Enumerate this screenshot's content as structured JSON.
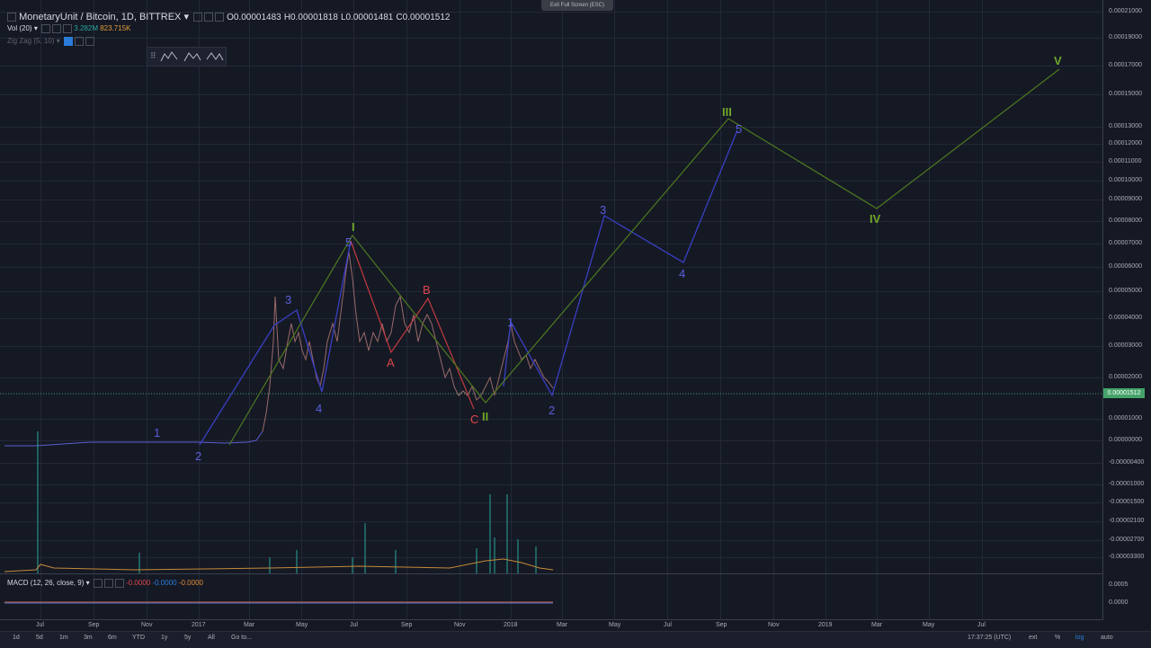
{
  "exit_fullscreen": "Exit Full Screen (ESC)",
  "symbol": {
    "name": "MonetaryUnit / Bitcoin, 1D, BITTREX",
    "open_label": "O",
    "open": "0.00001483",
    "high_label": "H",
    "high": "0.00001818",
    "low_label": "L",
    "low": "0.00001481",
    "close_label": "C",
    "close": "0.00001512"
  },
  "volume": {
    "label": "Vol (20)",
    "value1": "3.282M",
    "value2": "823.715K"
  },
  "zigzag": {
    "label": "Zig Zag (5, 10)"
  },
  "macd": {
    "label": "MACD (12, 26, close, 9)",
    "v1": "-0.0000",
    "v2": "-0.0000",
    "v3": "-0.0000"
  },
  "price_axis": [
    "0.00021000",
    "0.00019000",
    "0.00017000",
    "0.00015000",
    "0.00013000",
    "0.00012000",
    "0.00011000",
    "0.00010000",
    "0.00009000",
    "0.00008000",
    "0.00007000",
    "0.00006000",
    "0.00005000",
    "0.00004000",
    "0.00003000",
    "0.00002000",
    "0.00001000",
    "0.00000000",
    "-0.00000400",
    "-0.00001000",
    "-0.00001500",
    "-0.00002100",
    "-0.00002700",
    "-0.00003300"
  ],
  "last_price": "0.00001512",
  "macd_axis": [
    "0.0005",
    "0.0000"
  ],
  "time_axis": [
    "Jul",
    "Sep",
    "Nov",
    "2017",
    "Mar",
    "May",
    "Jul",
    "Sep",
    "Nov",
    "2018",
    "Mar",
    "May",
    "Jul",
    "Sep",
    "Nov",
    "2019",
    "Mar",
    "May",
    "Jul"
  ],
  "timeframes": [
    "1d",
    "5d",
    "1m",
    "3m",
    "6m",
    "YTD",
    "1y",
    "5y",
    "All",
    "Go to..."
  ],
  "clock": "17:37:25 (UTC)",
  "right_opts": [
    "ext",
    "%",
    "log",
    "auto"
  ],
  "colors": {
    "bg": "#151924",
    "blue_wave": "#3a3fc4",
    "red_wave": "#c23b3f",
    "green_wave": "#4f7a1f",
    "up": "#26a69a",
    "down": "#ef5350"
  },
  "waves": {
    "b1": "1",
    "b2": "2",
    "b3": "3",
    "b4": "4",
    "b5": "5",
    "r1": "1",
    "r2": "2",
    "r3": "3",
    "r4": "4",
    "r5": "5",
    "a": "A",
    "b": "B",
    "c": "C",
    "gI": "I",
    "gII": "II",
    "gIII": "III",
    "gIV": "IV",
    "gV": "V"
  }
}
